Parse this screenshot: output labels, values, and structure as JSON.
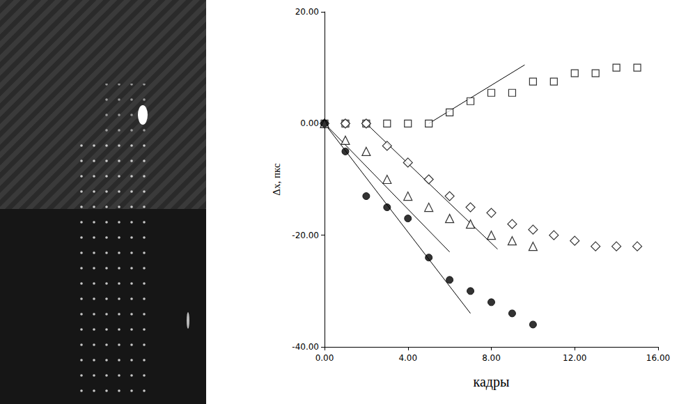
{
  "chart_data": {
    "type": "scatter",
    "x_label": "кадры",
    "y_label": "Δx, пкс",
    "xlim": [
      0,
      16
    ],
    "xticks": [
      {
        "value": 0,
        "label": "0.00"
      },
      {
        "value": 4,
        "label": "4.00"
      },
      {
        "value": 8,
        "label": "8.00"
      },
      {
        "value": 12,
        "label": "12.00"
      },
      {
        "value": 16,
        "label": "16.00"
      }
    ],
    "ylim": [
      -40,
      20
    ],
    "yticks": [
      {
        "value": -40,
        "label": "-40.00"
      },
      {
        "value": -20,
        "label": "-20.00"
      },
      {
        "value": 0,
        "label": "0.00"
      },
      {
        "value": 20,
        "label": "20.00"
      }
    ],
    "grid": false,
    "series": [
      {
        "type": "scatter",
        "marker": "square-open",
        "color": "#000000",
        "x": [
          0,
          1,
          2,
          3,
          4,
          5,
          6,
          7,
          8,
          9,
          10,
          11,
          12,
          13,
          14,
          15
        ],
        "values": [
          0,
          0,
          0,
          0,
          0,
          0,
          2,
          4,
          5.5,
          5.5,
          7.5,
          7.5,
          9,
          9,
          10,
          10
        ]
      },
      {
        "type": "scatter",
        "marker": "diamond-open",
        "color": "#000000",
        "x": [
          0,
          1,
          2,
          3,
          4,
          5,
          6,
          7,
          8,
          9,
          10,
          11,
          12,
          13,
          14,
          15
        ],
        "values": [
          0,
          0,
          0,
          -4,
          -7,
          -10,
          -13,
          -15,
          -16,
          -18,
          -19,
          -20,
          -21,
          -22,
          -22,
          -22
        ]
      },
      {
        "type": "scatter",
        "marker": "triangle-open",
        "color": "#000000",
        "x": [
          0,
          1,
          2,
          3,
          4,
          5,
          6,
          7,
          8,
          9,
          10
        ],
        "values": [
          0,
          -3,
          -5,
          -10,
          -13,
          -15,
          -17,
          -18,
          -20,
          -21,
          -22
        ]
      },
      {
        "type": "scatter",
        "marker": "circle-filled",
        "color": "#000000",
        "x": [
          0,
          1,
          2,
          3,
          4,
          5,
          6,
          7,
          8,
          9,
          10
        ],
        "values": [
          0,
          -5,
          -13,
          -15,
          -17,
          -24,
          -28,
          -30,
          -32,
          -34,
          -36
        ]
      },
      {
        "type": "line",
        "line_style": "solid",
        "color": "#000000",
        "x": [
          5,
          9.6
        ],
        "values": [
          0,
          10.5
        ]
      },
      {
        "type": "line",
        "line_style": "solid",
        "color": "#000000",
        "x": [
          2,
          8.3
        ],
        "values": [
          0,
          -22.5
        ]
      },
      {
        "type": "line",
        "line_style": "solid",
        "color": "#000000",
        "x": [
          0,
          6
        ],
        "values": [
          0,
          -23
        ]
      },
      {
        "type": "line",
        "line_style": "solid",
        "color": "#000000",
        "x": [
          0,
          7
        ],
        "values": [
          0,
          -34
        ]
      }
    ]
  }
}
